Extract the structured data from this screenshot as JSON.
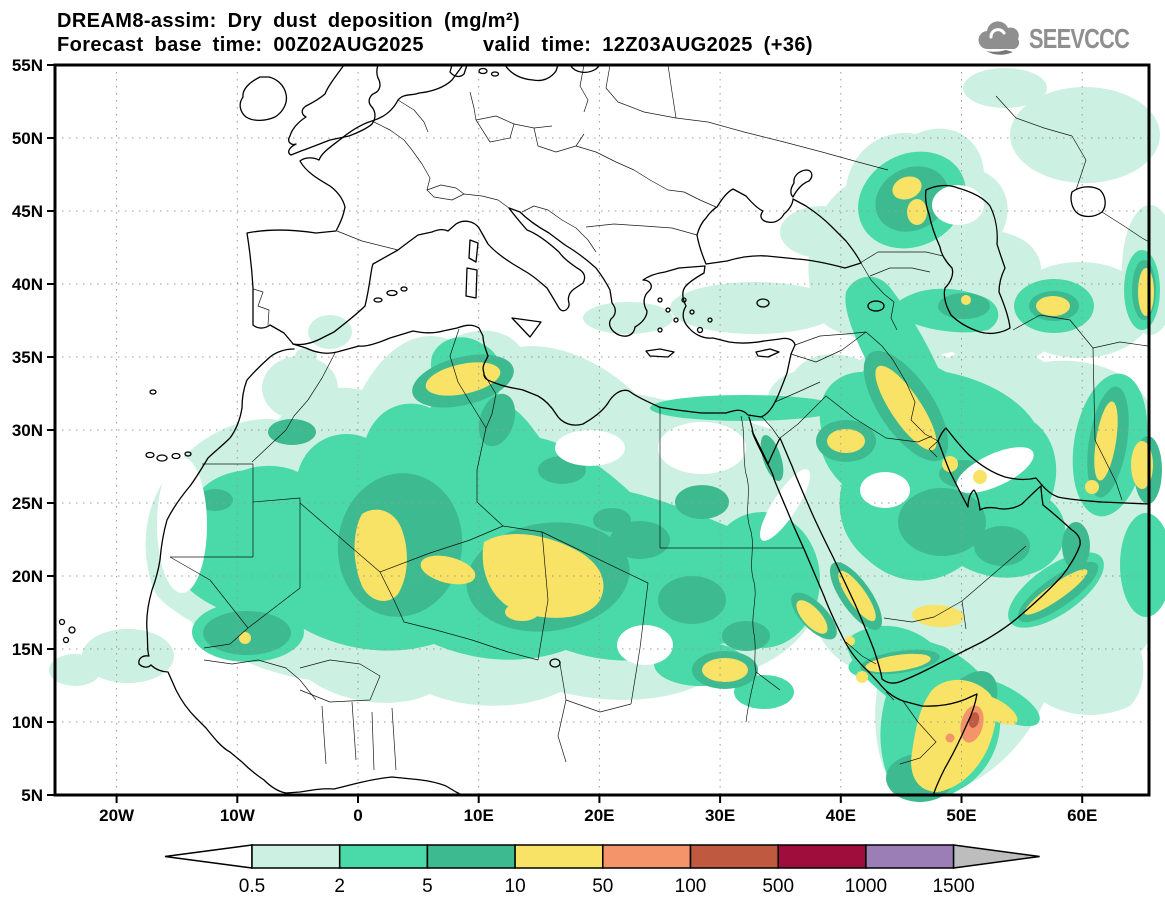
{
  "title": {
    "line1": "DREAM8-assim: Dry dust deposition (mg/m²)",
    "line2a": "Forecast base time: 00Z02AUG2025",
    "line2b": "valid time: 12Z03AUG2025 (+36)"
  },
  "logo": {
    "text": "SEEVCCC",
    "icon": "cloud-icon",
    "color": "#8f8f8f"
  },
  "map": {
    "lat_ticks": [
      {
        "label": "55N",
        "deg": 55
      },
      {
        "label": "50N",
        "deg": 50
      },
      {
        "label": "45N",
        "deg": 45
      },
      {
        "label": "40N",
        "deg": 40
      },
      {
        "label": "35N",
        "deg": 35
      },
      {
        "label": "30N",
        "deg": 30
      },
      {
        "label": "25N",
        "deg": 25
      },
      {
        "label": "20N",
        "deg": 20
      },
      {
        "label": "15N",
        "deg": 15
      },
      {
        "label": "10N",
        "deg": 10
      },
      {
        "label": "5N",
        "deg": 5
      }
    ],
    "lon_ticks": [
      {
        "label": "20W",
        "deg": -20
      },
      {
        "label": "10W",
        "deg": -10
      },
      {
        "label": "0",
        "deg": 0
      },
      {
        "label": "10E",
        "deg": 10
      },
      {
        "label": "20E",
        "deg": 20
      },
      {
        "label": "30E",
        "deg": 30
      },
      {
        "label": "40E",
        "deg": 40
      },
      {
        "label": "50E",
        "deg": 50
      },
      {
        "label": "60E",
        "deg": 60
      }
    ]
  },
  "colorbar": {
    "levels": [
      "0.5",
      "2",
      "5",
      "10",
      "50",
      "100",
      "500",
      "1000",
      "1500"
    ],
    "colors": [
      "#ccf0e2",
      "#4ad9a9",
      "#3eba90",
      "#f8e366",
      "#f4946a",
      "#bf5a41",
      "#9f0d3c",
      "#9c7eb7"
    ],
    "underflow_color": "#ffffff",
    "overflow_color": "#bdbdbd",
    "units": "mg/m²"
  }
}
